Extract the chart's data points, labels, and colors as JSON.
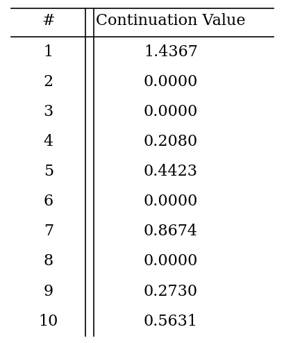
{
  "title": "#",
  "col_header": "Continuation Value",
  "rows": [
    [
      1,
      "1.4367"
    ],
    [
      2,
      "0.0000"
    ],
    [
      3,
      "0.0000"
    ],
    [
      4,
      "0.2080"
    ],
    [
      5,
      "0.4423"
    ],
    [
      6,
      "0.0000"
    ],
    [
      7,
      "0.8674"
    ],
    [
      8,
      "0.0000"
    ],
    [
      9,
      "0.2730"
    ],
    [
      10,
      "0.5631"
    ]
  ],
  "background_color": "#ffffff",
  "text_color": "#000000",
  "font_size": 16,
  "header_font_size": 16,
  "fig_width": 4.1,
  "fig_height": 4.94,
  "dpi": 100
}
